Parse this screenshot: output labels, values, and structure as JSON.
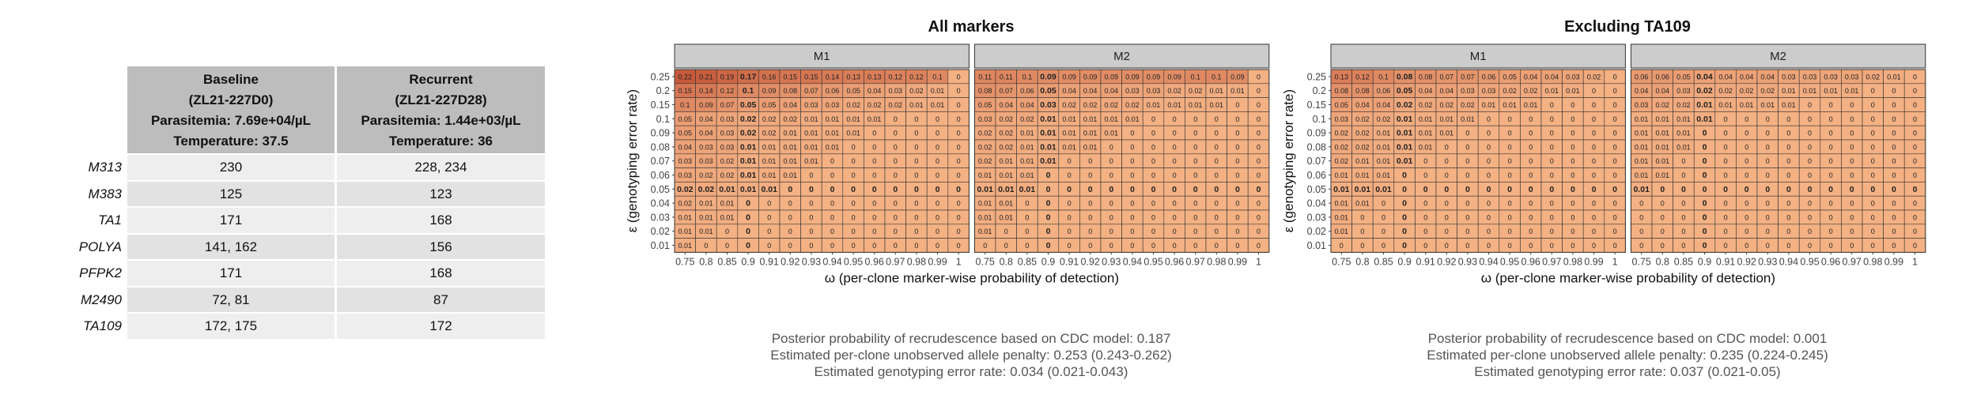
{
  "table": {
    "columns": [
      {
        "lines": [
          "Baseline",
          "(ZL21-227D0)",
          "Parasitemia: 7.69e+04/µL",
          "Temperature: 37.5"
        ]
      },
      {
        "lines": [
          "Recurrent",
          "(ZL21-227D28)",
          "Parasitemia: 1.44e+03/µL",
          "Temperature: 36"
        ]
      }
    ],
    "rows": [
      {
        "marker": "M313",
        "baseline": "230",
        "recurrent": "228, 234"
      },
      {
        "marker": "M383",
        "baseline": "125",
        "recurrent": "123"
      },
      {
        "marker": "TA1",
        "baseline": "171",
        "recurrent": "168"
      },
      {
        "marker": "POLYA",
        "baseline": "141, 162",
        "recurrent": "156"
      },
      {
        "marker": "PFPK2",
        "baseline": "171",
        "recurrent": "168"
      },
      {
        "marker": "M2490",
        "baseline": "72, 81",
        "recurrent": "87"
      },
      {
        "marker": "TA109",
        "baseline": "172, 175",
        "recurrent": "172"
      }
    ]
  },
  "colors": {
    "heat_low": "#f4b183",
    "heat_high": "#c65a3c",
    "strip": "#cccccc",
    "table_header": "#bdbdbd",
    "row_odd": "#eeeeee",
    "row_even": "#e2e2e2"
  },
  "chart_data": [
    {
      "type": "heatmap",
      "title": "All markers",
      "xlabel": "ω (per-clone marker-wise probability of detection)",
      "ylabel": "ε (genotyping error rate)",
      "x": [
        "0.75",
        "0.8",
        "0.85",
        "0.9",
        "0.91",
        "0.92",
        "0.93",
        "0.94",
        "0.95",
        "0.96",
        "0.97",
        "0.98",
        "0.99",
        "1"
      ],
      "y": [
        "0.25",
        "0.2",
        "0.15",
        "0.1",
        "0.09",
        "0.08",
        "0.07",
        "0.06",
        "0.05",
        "0.04",
        "0.03",
        "0.02",
        "0.01"
      ],
      "bold_x": "0.9",
      "bold_y": "0.05",
      "facets": [
        {
          "name": "M1",
          "values": [
            [
              "0.22",
              "0.21",
              "0.19",
              "0.17",
              "0.16",
              "0.15",
              "0.15",
              "0.14",
              "0.13",
              "0.13",
              "0.12",
              "0.12",
              "0.1",
              "0"
            ],
            [
              "0.15",
              "0.14",
              "0.12",
              "0.1",
              "0.09",
              "0.08",
              "0.07",
              "0.06",
              "0.05",
              "0.04",
              "0.03",
              "0.02",
              "0.01",
              "0"
            ],
            [
              "0.1",
              "0.09",
              "0.07",
              "0.05",
              "0.05",
              "0.04",
              "0.03",
              "0.03",
              "0.02",
              "0.02",
              "0.02",
              "0.01",
              "0.01",
              "0"
            ],
            [
              "0.05",
              "0.04",
              "0.03",
              "0.02",
              "0.02",
              "0.02",
              "0.01",
              "0.01",
              "0.01",
              "0.01",
              "0",
              "0",
              "0",
              "0"
            ],
            [
              "0.05",
              "0.04",
              "0.03",
              "0.02",
              "0.02",
              "0.01",
              "0.01",
              "0.01",
              "0.01",
              "0",
              "0",
              "0",
              "0",
              "0"
            ],
            [
              "0.04",
              "0.03",
              "0.03",
              "0.01",
              "0.01",
              "0.01",
              "0.01",
              "0.01",
              "0",
              "0",
              "0",
              "0",
              "0",
              "0"
            ],
            [
              "0.03",
              "0.03",
              "0.02",
              "0.01",
              "0.01",
              "0.01",
              "0.01",
              "0",
              "0",
              "0",
              "0",
              "0",
              "0",
              "0"
            ],
            [
              "0.03",
              "0.02",
              "0.02",
              "0.01",
              "0.01",
              "0.01",
              "0",
              "0",
              "0",
              "0",
              "0",
              "0",
              "0",
              "0"
            ],
            [
              "0.02",
              "0.02",
              "0.01",
              "0.01",
              "0.01",
              "0",
              "0",
              "0",
              "0",
              "0",
              "0",
              "0",
              "0",
              "0"
            ],
            [
              "0.02",
              "0.01",
              "0.01",
              "0",
              "0",
              "0",
              "0",
              "0",
              "0",
              "0",
              "0",
              "0",
              "0",
              "0"
            ],
            [
              "0.01",
              "0.01",
              "0.01",
              "0",
              "0",
              "0",
              "0",
              "0",
              "0",
              "0",
              "0",
              "0",
              "0",
              "0"
            ],
            [
              "0.01",
              "0.01",
              "0",
              "0",
              "0",
              "0",
              "0",
              "0",
              "0",
              "0",
              "0",
              "0",
              "0",
              "0"
            ],
            [
              "0.01",
              "0",
              "0",
              "0",
              "0",
              "0",
              "0",
              "0",
              "0",
              "0",
              "0",
              "0",
              "0",
              "0"
            ]
          ]
        },
        {
          "name": "M2",
          "values": [
            [
              "0.11",
              "0.11",
              "0.1",
              "0.09",
              "0.09",
              "0.09",
              "0.09",
              "0.09",
              "0.09",
              "0.09",
              "0.1",
              "0.1",
              "0.09",
              "0"
            ],
            [
              "0.08",
              "0.07",
              "0.06",
              "0.05",
              "0.04",
              "0.04",
              "0.04",
              "0.03",
              "0.03",
              "0.02",
              "0.02",
              "0.01",
              "0.01",
              "0"
            ],
            [
              "0.05",
              "0.04",
              "0.04",
              "0.03",
              "0.02",
              "0.02",
              "0.02",
              "0.02",
              "0.01",
              "0.01",
              "0.01",
              "0.01",
              "0",
              "0"
            ],
            [
              "0.03",
              "0.02",
              "0.02",
              "0.01",
              "0.01",
              "0.01",
              "0.01",
              "0.01",
              "0",
              "0",
              "0",
              "0",
              "0",
              "0"
            ],
            [
              "0.02",
              "0.02",
              "0.01",
              "0.01",
              "0.01",
              "0.01",
              "0.01",
              "0",
              "0",
              "0",
              "0",
              "0",
              "0",
              "0"
            ],
            [
              "0.02",
              "0.02",
              "0.01",
              "0.01",
              "0.01",
              "0.01",
              "0",
              "0",
              "0",
              "0",
              "0",
              "0",
              "0",
              "0"
            ],
            [
              "0.02",
              "0.01",
              "0.01",
              "0.01",
              "0",
              "0",
              "0",
              "0",
              "0",
              "0",
              "0",
              "0",
              "0",
              "0"
            ],
            [
              "0.01",
              "0.01",
              "0.01",
              "0",
              "0",
              "0",
              "0",
              "0",
              "0",
              "0",
              "0",
              "0",
              "0",
              "0"
            ],
            [
              "0.01",
              "0.01",
              "0.01",
              "0",
              "0",
              "0",
              "0",
              "0",
              "0",
              "0",
              "0",
              "0",
              "0",
              "0"
            ],
            [
              "0.01",
              "0.01",
              "0",
              "0",
              "0",
              "0",
              "0",
              "0",
              "0",
              "0",
              "0",
              "0",
              "0",
              "0"
            ],
            [
              "0.01",
              "0.01",
              "0",
              "0",
              "0",
              "0",
              "0",
              "0",
              "0",
              "0",
              "0",
              "0",
              "0",
              "0"
            ],
            [
              "0.01",
              "0",
              "0",
              "0",
              "0",
              "0",
              "0",
              "0",
              "0",
              "0",
              "0",
              "0",
              "0",
              "0"
            ],
            [
              "0",
              "0",
              "0",
              "0",
              "0",
              "0",
              "0",
              "0",
              "0",
              "0",
              "0",
              "0",
              "0",
              "0"
            ]
          ]
        }
      ],
      "notes": [
        "Posterior probability of recrudescence based on CDC model: 0.187",
        "Estimated per-clone unobserved allele penalty: 0.253 (0.243-0.262)",
        "Estimated genotyping error rate: 0.034 (0.021-0.043)"
      ]
    },
    {
      "type": "heatmap",
      "title": "Excluding TA109",
      "xlabel": "ω (per-clone marker-wise probability of detection)",
      "ylabel": "ε (genotyping error rate)",
      "x": [
        "0.75",
        "0.8",
        "0.85",
        "0.9",
        "0.91",
        "0.92",
        "0.93",
        "0.94",
        "0.95",
        "0.96",
        "0.97",
        "0.98",
        "0.99",
        "1"
      ],
      "y": [
        "0.25",
        "0.2",
        "0.15",
        "0.1",
        "0.09",
        "0.08",
        "0.07",
        "0.06",
        "0.05",
        "0.04",
        "0.03",
        "0.02",
        "0.01"
      ],
      "bold_x": "0.9",
      "bold_y": "0.05",
      "facets": [
        {
          "name": "M1",
          "values": [
            [
              "0.13",
              "0.12",
              "0.1",
              "0.08",
              "0.08",
              "0.07",
              "0.07",
              "0.06",
              "0.05",
              "0.04",
              "0.04",
              "0.03",
              "0.02",
              "0"
            ],
            [
              "0.08",
              "0.08",
              "0.06",
              "0.05",
              "0.04",
              "0.04",
              "0.03",
              "0.03",
              "0.02",
              "0.02",
              "0.01",
              "0.01",
              "0",
              "0"
            ],
            [
              "0.05",
              "0.04",
              "0.04",
              "0.02",
              "0.02",
              "0.02",
              "0.02",
              "0.01",
              "0.01",
              "0.01",
              "0",
              "0",
              "0",
              "0"
            ],
            [
              "0.03",
              "0.02",
              "0.02",
              "0.01",
              "0.01",
              "0.01",
              "0.01",
              "0",
              "0",
              "0",
              "0",
              "0",
              "0",
              "0"
            ],
            [
              "0.02",
              "0.02",
              "0.01",
              "0.01",
              "0.01",
              "0.01",
              "0",
              "0",
              "0",
              "0",
              "0",
              "0",
              "0",
              "0"
            ],
            [
              "0.02",
              "0.02",
              "0.01",
              "0.01",
              "0.01",
              "0",
              "0",
              "0",
              "0",
              "0",
              "0",
              "0",
              "0",
              "0"
            ],
            [
              "0.02",
              "0.01",
              "0.01",
              "0.01",
              "0",
              "0",
              "0",
              "0",
              "0",
              "0",
              "0",
              "0",
              "0",
              "0"
            ],
            [
              "0.01",
              "0.01",
              "0.01",
              "0",
              "0",
              "0",
              "0",
              "0",
              "0",
              "0",
              "0",
              "0",
              "0",
              "0"
            ],
            [
              "0.01",
              "0.01",
              "0.01",
              "0",
              "0",
              "0",
              "0",
              "0",
              "0",
              "0",
              "0",
              "0",
              "0",
              "0"
            ],
            [
              "0.01",
              "0.01",
              "0",
              "0",
              "0",
              "0",
              "0",
              "0",
              "0",
              "0",
              "0",
              "0",
              "0",
              "0"
            ],
            [
              "0.01",
              "0",
              "0",
              "0",
              "0",
              "0",
              "0",
              "0",
              "0",
              "0",
              "0",
              "0",
              "0",
              "0"
            ],
            [
              "0.01",
              "0",
              "0",
              "0",
              "0",
              "0",
              "0",
              "0",
              "0",
              "0",
              "0",
              "0",
              "0",
              "0"
            ],
            [
              "0",
              "0",
              "0",
              "0",
              "0",
              "0",
              "0",
              "0",
              "0",
              "0",
              "0",
              "0",
              "0",
              "0"
            ]
          ]
        },
        {
          "name": "M2",
          "values": [
            [
              "0.06",
              "0.06",
              "0.05",
              "0.04",
              "0.04",
              "0.04",
              "0.04",
              "0.03",
              "0.03",
              "0.03",
              "0.03",
              "0.02",
              "0.01",
              "0"
            ],
            [
              "0.04",
              "0.04",
              "0.03",
              "0.02",
              "0.02",
              "0.02",
              "0.02",
              "0.01",
              "0.01",
              "0.01",
              "0.01",
              "0",
              "0",
              "0"
            ],
            [
              "0.03",
              "0.02",
              "0.02",
              "0.01",
              "0.01",
              "0.01",
              "0.01",
              "0.01",
              "0",
              "0",
              "0",
              "0",
              "0",
              "0"
            ],
            [
              "0.01",
              "0.01",
              "0.01",
              "0.01",
              "0",
              "0",
              "0",
              "0",
              "0",
              "0",
              "0",
              "0",
              "0",
              "0"
            ],
            [
              "0.01",
              "0.01",
              "0.01",
              "0",
              "0",
              "0",
              "0",
              "0",
              "0",
              "0",
              "0",
              "0",
              "0",
              "0"
            ],
            [
              "0.01",
              "0.01",
              "0.01",
              "0",
              "0",
              "0",
              "0",
              "0",
              "0",
              "0",
              "0",
              "0",
              "0",
              "0"
            ],
            [
              "0.01",
              "0.01",
              "0",
              "0",
              "0",
              "0",
              "0",
              "0",
              "0",
              "0",
              "0",
              "0",
              "0",
              "0"
            ],
            [
              "0.01",
              "0.01",
              "0",
              "0",
              "0",
              "0",
              "0",
              "0",
              "0",
              "0",
              "0",
              "0",
              "0",
              "0"
            ],
            [
              "0.01",
              "0",
              "0",
              "0",
              "0",
              "0",
              "0",
              "0",
              "0",
              "0",
              "0",
              "0",
              "0",
              "0"
            ],
            [
              "0",
              "0",
              "0",
              "0",
              "0",
              "0",
              "0",
              "0",
              "0",
              "0",
              "0",
              "0",
              "0",
              "0"
            ],
            [
              "0",
              "0",
              "0",
              "0",
              "0",
              "0",
              "0",
              "0",
              "0",
              "0",
              "0",
              "0",
              "0",
              "0"
            ],
            [
              "0",
              "0",
              "0",
              "0",
              "0",
              "0",
              "0",
              "0",
              "0",
              "0",
              "0",
              "0",
              "0",
              "0"
            ],
            [
              "0",
              "0",
              "0",
              "0",
              "0",
              "0",
              "0",
              "0",
              "0",
              "0",
              "0",
              "0",
              "0",
              "0"
            ]
          ]
        }
      ],
      "notes": [
        "Posterior probability of recrudescence based on CDC model: 0.001",
        "Estimated per-clone unobserved allele penalty: 0.235 (0.224-0.245)",
        "Estimated genotyping error rate: 0.037 (0.021-0.05)"
      ]
    }
  ]
}
